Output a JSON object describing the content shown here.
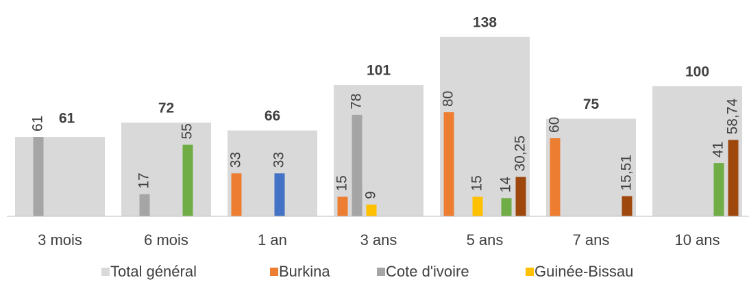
{
  "chart_data": {
    "type": "bar",
    "categories": [
      "3 mois",
      "6 mois",
      "1 an",
      "3 ans",
      "5 ans",
      "7 ans",
      "10 ans"
    ],
    "ylim": [
      0,
      150
    ],
    "series": [
      {
        "name": "Total général",
        "color": "#d9d9d9",
        "values": [
          61,
          72,
          66,
          101,
          138,
          75,
          100
        ]
      },
      {
        "name": "Burkina",
        "color": "#ed7d31",
        "values": [
          null,
          null,
          33,
          15,
          80,
          60,
          null
        ]
      },
      {
        "name": "Cote d'ivoire",
        "color": "#a5a5a5",
        "values": [
          61,
          17,
          null,
          78,
          null,
          null,
          null
        ]
      },
      {
        "name": "Guinée-Bissau",
        "color": "#ffc000",
        "values": [
          null,
          null,
          null,
          9,
          15,
          null,
          null
        ]
      },
      {
        "color": "#4472c4",
        "values": [
          null,
          null,
          33,
          null,
          null,
          null,
          null
        ]
      },
      {
        "color": "#70ad47",
        "values": [
          null,
          55,
          null,
          null,
          14,
          null,
          41
        ]
      },
      {
        "color": "#9e480e",
        "values": [
          null,
          null,
          null,
          null,
          30.25,
          15.51,
          58.74
        ],
        "value_labels": [
          null,
          null,
          null,
          null,
          "30,25",
          "15,51",
          "58,74"
        ]
      }
    ]
  }
}
